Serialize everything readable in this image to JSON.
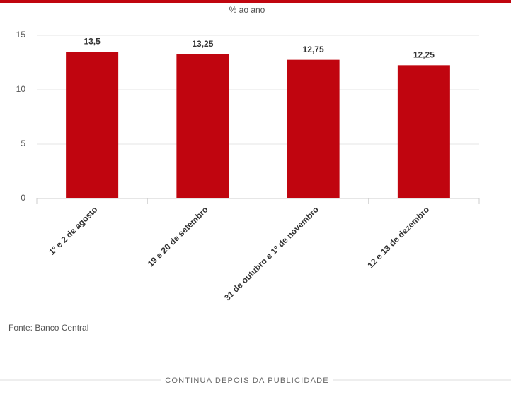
{
  "chart_data": {
    "type": "bar",
    "subtitle": "% ao ano",
    "categories": [
      "1º e 2 de agosto",
      "19 e 20 de setembro",
      "31 de outubro e 1º de novembro",
      "12 e 13 de dezembro"
    ],
    "values": [
      13.5,
      13.25,
      12.75,
      12.25
    ],
    "value_labels": [
      "13,5",
      "13,25",
      "12,75",
      "12,25"
    ],
    "color": "#c0050f",
    "ylim": [
      0,
      15
    ],
    "yticks": [
      0,
      5,
      10,
      15
    ],
    "grid": true
  },
  "footer": {
    "source": "Fonte: Banco Central",
    "notice": "CONTINUA DEPOIS DA PUBLICIDADE"
  }
}
